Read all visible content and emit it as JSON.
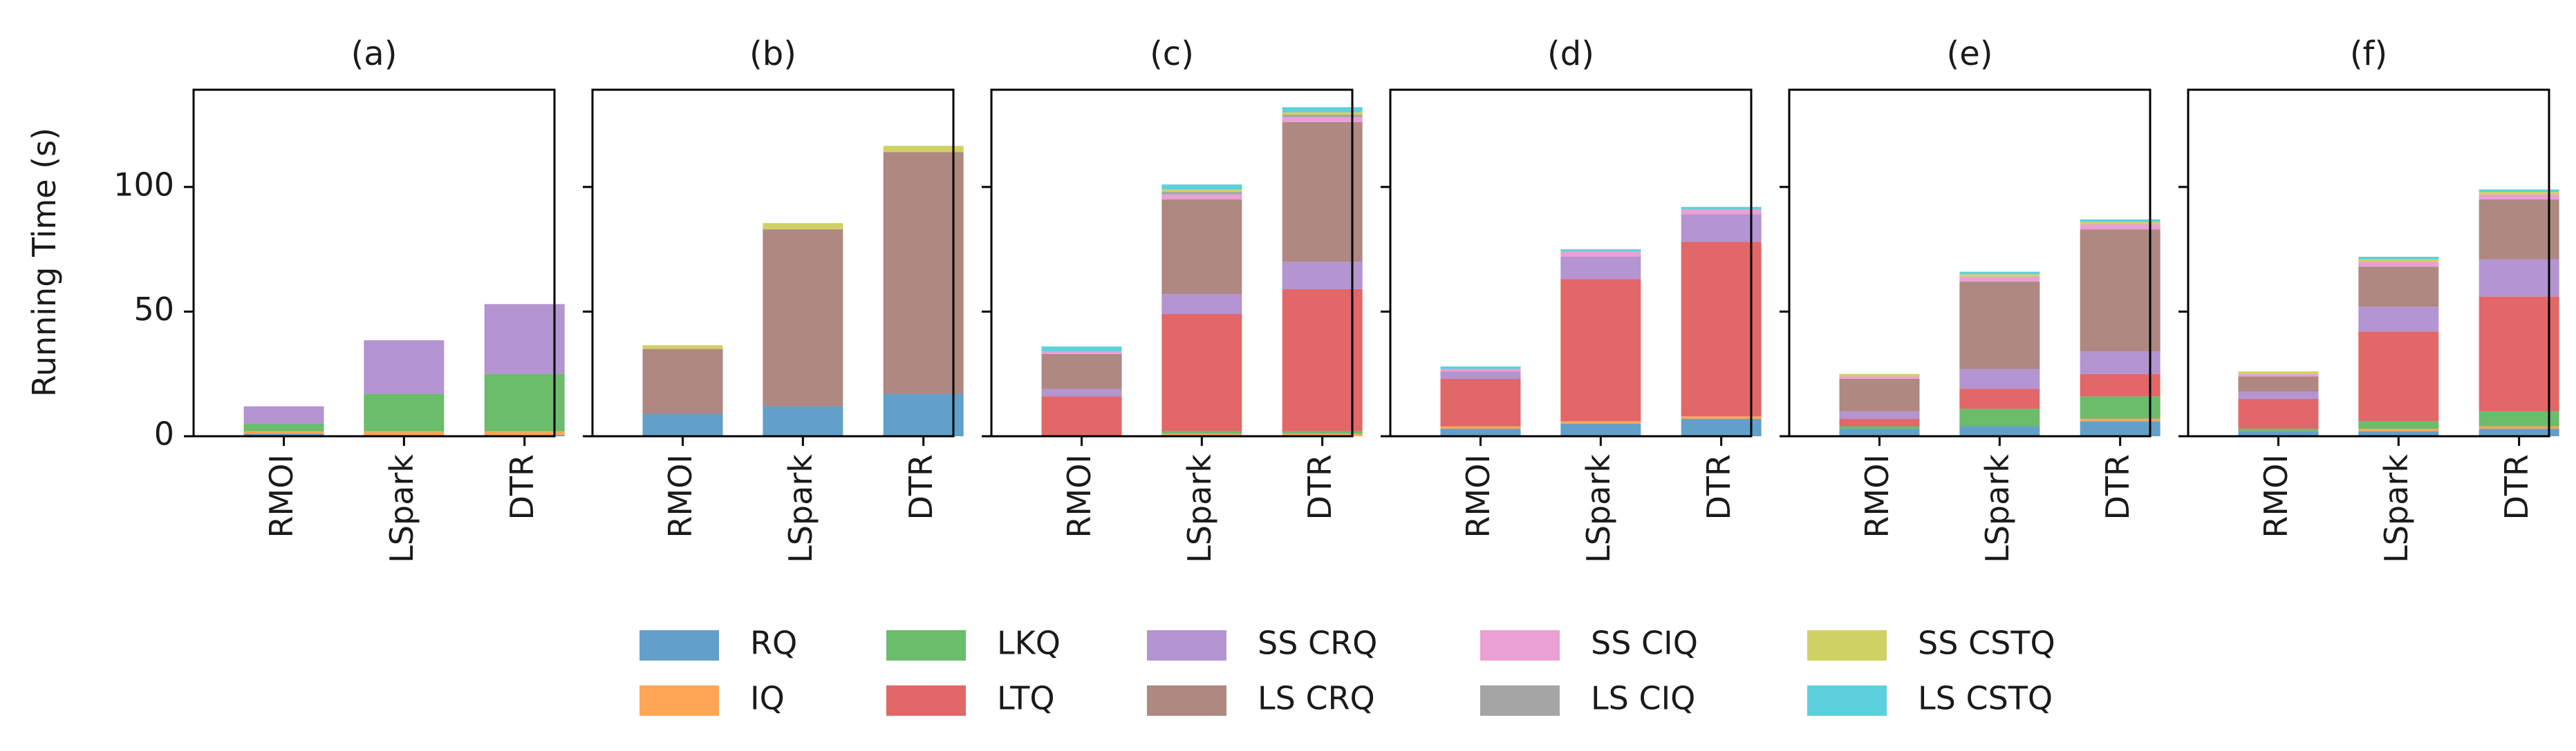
{
  "chart_data": {
    "type": "bar",
    "stacked": true,
    "ylabel": "Running Time (s)",
    "ylim": [
      0,
      139
    ],
    "yticks": [
      0,
      50,
      100
    ],
    "categories": [
      "RMOI",
      "LSpark",
      "DTR"
    ],
    "series_names": [
      "RQ",
      "IQ",
      "LKQ",
      "LTQ",
      "SS CRQ",
      "LS CRQ",
      "SS CIQ",
      "LS CIQ",
      "SS CSTQ",
      "LS CSTQ"
    ],
    "series_colors": [
      "#1f77b4",
      "#ff7f0e",
      "#2ca02c",
      "#d62728",
      "#9467bd",
      "#8c564b",
      "#e377c2",
      "#7f7f7f",
      "#bcbd22",
      "#17becf"
    ],
    "panels": [
      {
        "title": "(a)",
        "values": [
          [
            1,
            1,
            3,
            0,
            7,
            0,
            0,
            0,
            0,
            0
          ],
          [
            0.5,
            1.5,
            15,
            0,
            21.5,
            0,
            0,
            0,
            0,
            0
          ],
          [
            0.5,
            1.5,
            23,
            0,
            28,
            0,
            0,
            0,
            0,
            0
          ]
        ]
      },
      {
        "title": "(b)",
        "values": [
          [
            9,
            0,
            0,
            0,
            0,
            26,
            0,
            0,
            1.5,
            0
          ],
          [
            12,
            0,
            0,
            0,
            0,
            71,
            0,
            0,
            2.5,
            0
          ],
          [
            17,
            0,
            0,
            0,
            0,
            97,
            0,
            0,
            2.5,
            0
          ]
        ]
      },
      {
        "title": "(c)",
        "values": [
          [
            0,
            0,
            0,
            16,
            3,
            14,
            1,
            0,
            0,
            2
          ],
          [
            0,
            1,
            1,
            47,
            8,
            38,
            2,
            1,
            1,
            2
          ],
          [
            0,
            1,
            1,
            57,
            11,
            56,
            2,
            1,
            1,
            2
          ]
        ]
      },
      {
        "title": "(d)",
        "values": [
          [
            3,
            1,
            0,
            19,
            3,
            0,
            1,
            0,
            0,
            1
          ],
          [
            5,
            1,
            0,
            57,
            9,
            0,
            2,
            0,
            0,
            1
          ],
          [
            7,
            1,
            0,
            70,
            11,
            0,
            2,
            0,
            0,
            1
          ]
        ]
      },
      {
        "title": "(e)",
        "values": [
          [
            3,
            0,
            1,
            3,
            3,
            13,
            1,
            0,
            1,
            0
          ],
          [
            4,
            0,
            7,
            8,
            8,
            35,
            2,
            0,
            1,
            1
          ],
          [
            6,
            1,
            9,
            9,
            9,
            49,
            2,
            0,
            1,
            1
          ]
        ]
      },
      {
        "title": "(f)",
        "values": [
          [
            2,
            0,
            1,
            12,
            3,
            6,
            1,
            0,
            1,
            0
          ],
          [
            2,
            1,
            3,
            36,
            10,
            16,
            2,
            0,
            1,
            1
          ],
          [
            3,
            1,
            6,
            46,
            15,
            24,
            2,
            0,
            1,
            1
          ]
        ]
      }
    ]
  }
}
